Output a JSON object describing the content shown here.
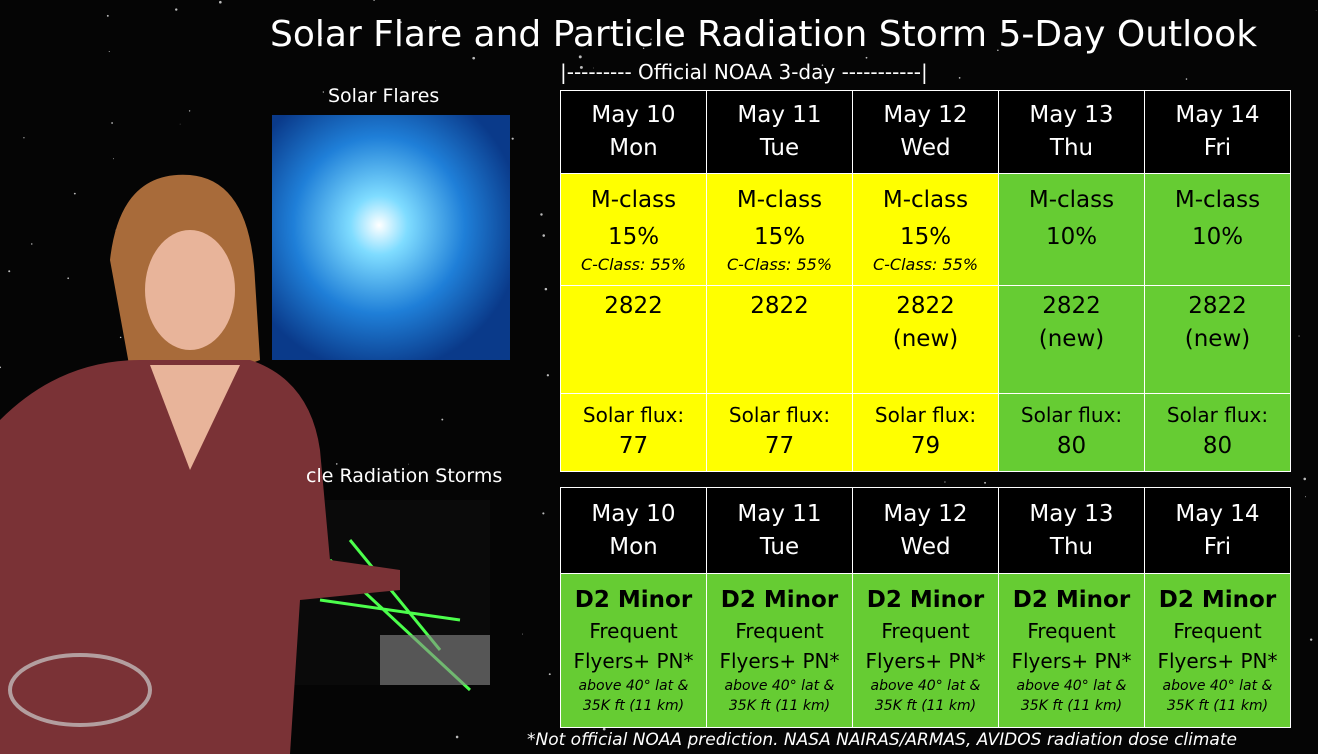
{
  "header": {
    "title": "Solar Flare and Particle Radiation Storm 5-Day Outlook",
    "official_note": "|--------- Official NOAA 3-day -----------|"
  },
  "panels": {
    "flares_label": "Solar Flares",
    "radiation_label": "cle Radiation Storms"
  },
  "flare_table": {
    "days": [
      {
        "date": "May 10",
        "weekday": "Mon",
        "color": "#ffff00",
        "flare": "M-class",
        "probability": "15%",
        "c_class": "C-Class: 55%",
        "region": "2822",
        "flux_label": "Solar flux:",
        "flux": 77
      },
      {
        "date": "May 11",
        "weekday": "Tue",
        "color": "#ffff00",
        "flare": "M-class",
        "probability": "15%",
        "c_class": "C-Class: 55%",
        "region": "2822",
        "flux_label": "Solar flux:",
        "flux": 77
      },
      {
        "date": "May 12",
        "weekday": "Wed",
        "color": "#ffff00",
        "flare": "M-class",
        "probability": "15%",
        "c_class": "C-Class: 55%",
        "region": "2822",
        "region_note": "(new)",
        "flux_label": "Solar flux:",
        "flux": 79
      },
      {
        "date": "May 13",
        "weekday": "Thu",
        "color": "#66cc33",
        "flare": "M-class",
        "probability": "10%",
        "region": "2822",
        "region_note": "(new)",
        "flux_label": "Solar flux:",
        "flux": 80
      },
      {
        "date": "May 14",
        "weekday": "Fri",
        "color": "#66cc33",
        "flare": "M-class",
        "probability": "10%",
        "region": "2822",
        "region_note": "(new)",
        "flux_label": "Solar flux:",
        "flux": 80
      }
    ]
  },
  "radiation_table": {
    "days": [
      {
        "date": "May 10",
        "weekday": "Mon",
        "color": "#66cc33",
        "level": "D2 Minor",
        "line1": "Frequent",
        "line2": "Flyers+ PN*",
        "line3": "above 40° lat &",
        "line4": "35K ft (11 km)"
      },
      {
        "date": "May 11",
        "weekday": "Tue",
        "color": "#66cc33",
        "level": "D2 Minor",
        "line1": "Frequent",
        "line2": "Flyers+ PN*",
        "line3": "above 40° lat &",
        "line4": "35K ft (11 km)"
      },
      {
        "date": "May 12",
        "weekday": "Wed",
        "color": "#66cc33",
        "level": "D2 Minor",
        "line1": "Frequent",
        "line2": "Flyers+ PN*",
        "line3": "above 40° lat &",
        "line4": "35K ft (11 km)"
      },
      {
        "date": "May 13",
        "weekday": "Thu",
        "color": "#66cc33",
        "level": "D2 Minor",
        "line1": "Frequent",
        "line2": "Flyers+ PN*",
        "line3": "above 40° lat &",
        "line4": "35K ft (11 km)"
      },
      {
        "date": "May 14",
        "weekday": "Fri",
        "color": "#66cc33",
        "level": "D2 Minor",
        "line1": "Frequent",
        "line2": "Flyers+ PN*",
        "line3": "above 40° lat &",
        "line4": "35K ft (11 km)"
      }
    ]
  },
  "footer": {
    "note": "*Not official NOAA prediction. NASA NAIRAS/ARMAS, AVIDOS radiation dose climate"
  }
}
